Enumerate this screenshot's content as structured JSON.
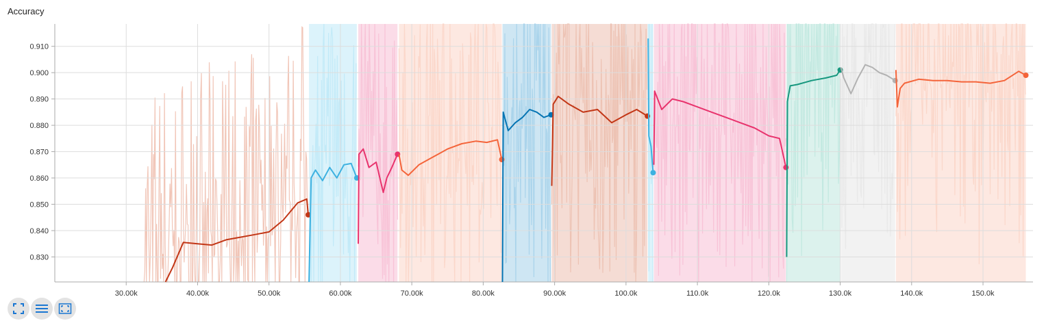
{
  "chart_data": {
    "type": "line",
    "title": "Accuracy",
    "xlabel": "",
    "ylabel": "",
    "xlim": [
      20000,
      157000
    ],
    "ylim": [
      0.8205,
      0.9185
    ],
    "x_ticks": [
      30000,
      40000,
      50000,
      60000,
      70000,
      80000,
      90000,
      100000,
      110000,
      120000,
      130000,
      140000,
      150000
    ],
    "x_tick_labels": [
      "30.00k",
      "40.00k",
      "50.00k",
      "60.00k",
      "70.00k",
      "80.00k",
      "90.00k",
      "100.0k",
      "110.0k",
      "120.0k",
      "130.0k",
      "140.0k",
      "150.0k"
    ],
    "y_ticks": [
      0.83,
      0.84,
      0.85,
      0.86,
      0.87,
      0.88,
      0.89,
      0.9,
      0.91
    ],
    "y_tick_labels": [
      "0.830",
      "0.840",
      "0.850",
      "0.860",
      "0.870",
      "0.880",
      "0.890",
      "0.900",
      "0.910"
    ],
    "grid": true,
    "legend": "none",
    "series": [
      {
        "color": "#c23616",
        "raw_color": "#f0c0b0",
        "shade": false,
        "x": [
          35500,
          36500,
          38000,
          40000,
          42000,
          44000,
          46000,
          48000,
          50000,
          52000,
          54000,
          55300,
          55500
        ],
        "y": [
          0.8205,
          0.826,
          0.8355,
          0.835,
          0.8345,
          0.8365,
          0.8375,
          0.8385,
          0.8395,
          0.844,
          0.8505,
          0.852,
          0.846
        ]
      },
      {
        "color": "#3db1e0",
        "raw_color": "#bfe9f7",
        "shade": true,
        "x": [
          55600,
          55900,
          56500,
          57500,
          58500,
          59500,
          60500,
          61500,
          62300
        ],
        "y": [
          0.8205,
          0.86,
          0.863,
          0.859,
          0.864,
          0.86,
          0.865,
          0.8655,
          0.86
        ]
      },
      {
        "color": "#e8336d",
        "raw_color": "#f7c0d5",
        "shade": true,
        "x": [
          62500,
          62600,
          63200,
          64000,
          65000,
          66000,
          66500,
          67200,
          68000
        ],
        "y": [
          0.835,
          0.869,
          0.871,
          0.864,
          0.866,
          0.8545,
          0.86,
          0.864,
          0.869
        ]
      },
      {
        "color": "#f4643a",
        "raw_color": "#fbd5c8",
        "shade": true,
        "x": [
          68200,
          68600,
          69500,
          71000,
          73000,
          75000,
          77000,
          79000,
          80500,
          82000,
          82600
        ],
        "y": [
          0.869,
          0.863,
          0.861,
          0.865,
          0.868,
          0.871,
          0.873,
          0.874,
          0.8735,
          0.8745,
          0.867
        ]
      },
      {
        "color": "#0574b3",
        "raw_color": "#a6d2ea",
        "shade": true,
        "x": [
          82700,
          82800,
          83500,
          84500,
          85500,
          86500,
          87500,
          88500,
          89500
        ],
        "y": [
          0.8205,
          0.885,
          0.878,
          0.881,
          0.883,
          0.886,
          0.885,
          0.883,
          0.884
        ]
      },
      {
        "color": "#c23616",
        "raw_color": "#ecc0b0",
        "shade": true,
        "x": [
          89600,
          89800,
          90500,
          92000,
          94000,
          96000,
          98000,
          100000,
          101500,
          103000
        ],
        "y": [
          0.857,
          0.888,
          0.891,
          0.888,
          0.885,
          0.886,
          0.881,
          0.884,
          0.886,
          0.8835
        ]
      },
      {
        "color": "#3db1e0",
        "raw_color": "#bfe9f7",
        "shade": true,
        "x": [
          103100,
          103200,
          103500,
          103800
        ],
        "y": [
          0.913,
          0.876,
          0.872,
          0.862
        ]
      },
      {
        "color": "#e8336d",
        "raw_color": "#f7c0d5",
        "shade": true,
        "x": [
          103900,
          104000,
          105000,
          106500,
          108000,
          110000,
          112000,
          114000,
          116000,
          118000,
          120000,
          121500,
          122400
        ],
        "y": [
          0.865,
          0.893,
          0.886,
          0.89,
          0.889,
          0.887,
          0.885,
          0.883,
          0.881,
          0.879,
          0.876,
          0.875,
          0.864
        ]
      },
      {
        "color": "#16977e",
        "raw_color": "#c0e8df",
        "shade": true,
        "x": [
          122500,
          122600,
          123000,
          124000,
          126000,
          128000,
          129500,
          130000
        ],
        "y": [
          0.83,
          0.889,
          0.895,
          0.8955,
          0.897,
          0.898,
          0.899,
          0.901
        ]
      },
      {
        "color": "#b2b2b2",
        "raw_color": "#e8e8e8",
        "shade": true,
        "x": [
          130100,
          130500,
          131500,
          132500,
          133500,
          134500,
          135500,
          136500,
          137700
        ],
        "y": [
          0.902,
          0.898,
          0.892,
          0.898,
          0.903,
          0.902,
          0.9,
          0.899,
          0.897
        ]
      },
      {
        "color": "#f4643a",
        "raw_color": "#fbd5c8",
        "shade": true,
        "x": [
          137800,
          138000,
          138400,
          139000,
          141000,
          143000,
          145000,
          147000,
          149000,
          151000,
          153000,
          155000,
          156000
        ],
        "y": [
          0.901,
          0.887,
          0.894,
          0.896,
          0.8975,
          0.897,
          0.897,
          0.8965,
          0.8965,
          0.896,
          0.897,
          0.9005,
          0.899
        ]
      }
    ]
  }
}
